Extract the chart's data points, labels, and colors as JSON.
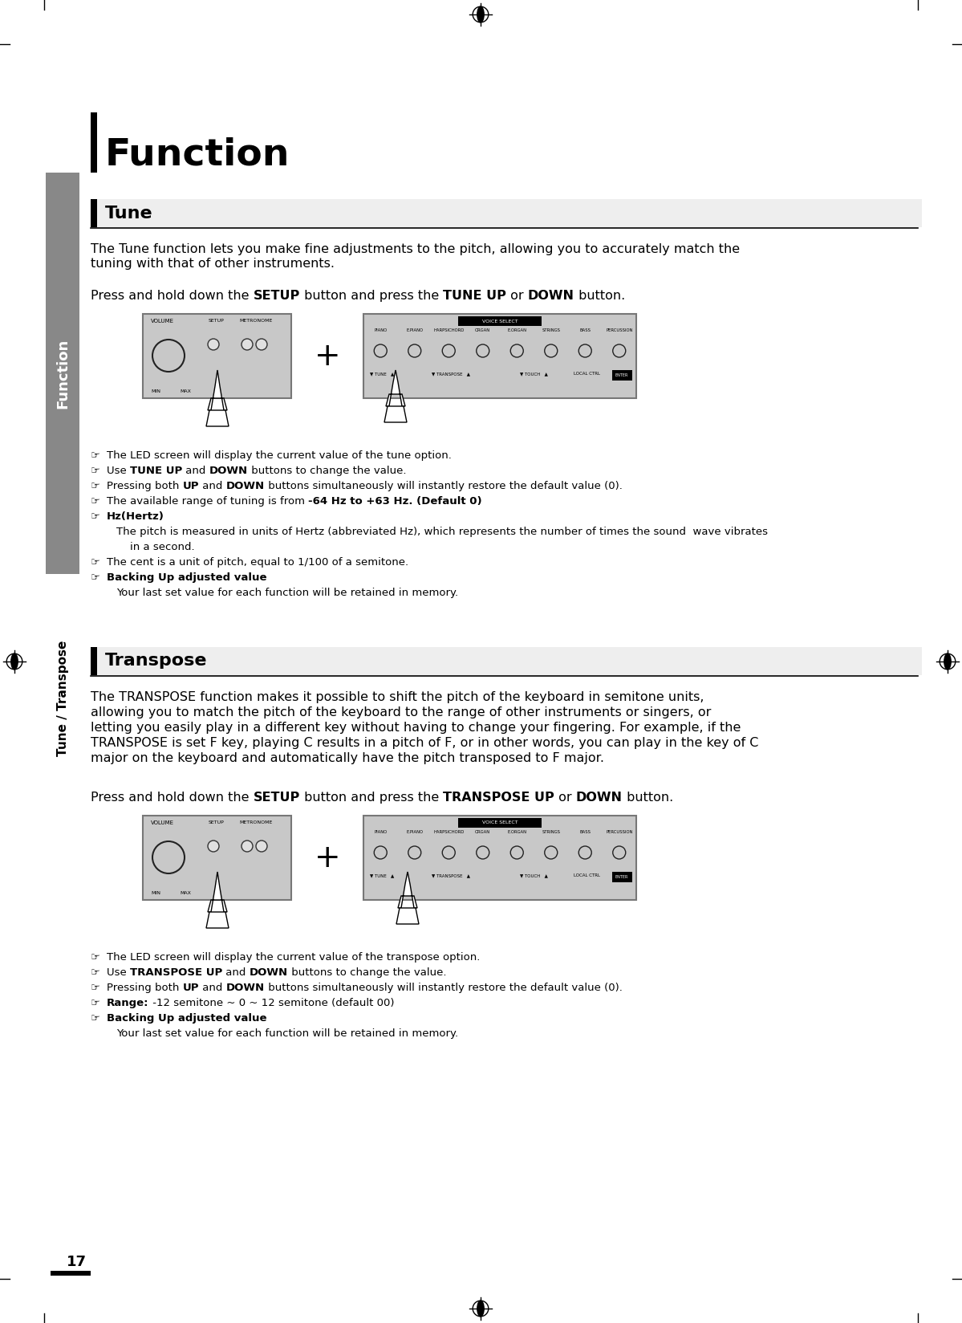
{
  "page_bg": "#ffffff",
  "page_number": "17",
  "title_main": "Function",
  "section1_title": "Tune",
  "section1_body1": "The Tune function lets you make fine adjustments to the pitch, allowing you to accurately match the",
  "section1_body2": "tuning with that of other instruments.",
  "section1_press_parts": [
    [
      "Press and hold down the ",
      false
    ],
    [
      "SETUP",
      true
    ],
    [
      " button and press the ",
      false
    ],
    [
      "TUNE UP",
      true
    ],
    [
      " or ",
      false
    ],
    [
      "DOWN",
      true
    ],
    [
      " button.",
      false
    ]
  ],
  "section1_bullets": [
    {
      "text": "The LED screen will display the current value of the tune option.",
      "bold_parts": []
    },
    {
      "text": "Use [TUNE UP] and [DOWN] buttons to change the value.",
      "bold_parts": [
        "TUNE UP",
        "DOWN"
      ]
    },
    {
      "text": "Pressing both [UP] and [DOWN] buttons simultaneously will instantly restore the default value (0).",
      "bold_parts": [
        "UP",
        "DOWN"
      ]
    },
    {
      "text": "The available range of tuning is from [-64 Hz to +63 Hz. (Default 0)]",
      "bold_parts": [
        "-64 Hz to +63 Hz. (Default 0)"
      ]
    },
    {
      "text": "[Hz(Hertz)]",
      "bold_parts": [
        "Hz(Hertz)"
      ],
      "sub": [
        "The pitch is measured in units of Hertz (abbreviated Hz), which represents the number of times the sound  wave vibrates",
        "    in a second."
      ]
    },
    {
      "text": "The cent is a unit of pitch, equal to 1/100 of a semitone.",
      "bold_parts": []
    },
    {
      "text": "[Backing Up adjusted value]",
      "bold_parts": [
        "Backing Up adjusted value"
      ],
      "sub": [
        "Your last set value for each function will be retained in memory."
      ]
    }
  ],
  "section2_title": "Transpose",
  "section2_body": [
    "The TRANSPOSE function makes it possible to shift the pitch of the keyboard in semitone units,",
    "allowing you to match the pitch of the keyboard to the range of other instruments or singers, or",
    "letting you easily play in a different key without having to change your fingering. For example, if the",
    "TRANSPOSE is set F key, playing C results in a pitch of F, or in other words, you can play in the key of C",
    "major on the keyboard and automatically have the pitch transposed to F major."
  ],
  "section2_press_parts": [
    [
      "Press and hold down the ",
      false
    ],
    [
      "SETUP",
      true
    ],
    [
      " button and press the ",
      false
    ],
    [
      "TRANSPOSE UP",
      true
    ],
    [
      " or ",
      false
    ],
    [
      "DOWN",
      true
    ],
    [
      " button.",
      false
    ]
  ],
  "section2_bullets": [
    {
      "text": "The LED screen will display the current value of the transpose option.",
      "bold_parts": []
    },
    {
      "text": "Use [TRANSPOSE UP] and [DOWN] buttons to change the value.",
      "bold_parts": [
        "TRANSPOSE UP",
        "DOWN"
      ]
    },
    {
      "text": "Pressing both [UP] and [DOWN] buttons simultaneously will instantly restore the default value (0).",
      "bold_parts": [
        "UP",
        "DOWN"
      ]
    },
    {
      "text": "[Range:] -12 semitone ~ 0 ~ 12 semitone (default 00)",
      "bold_parts": [
        "Range:"
      ]
    },
    {
      "text": "[Backing Up adjusted value]",
      "bold_parts": [
        "Backing Up adjusted value"
      ],
      "sub": [
        "Your last set value for each function will be retained in memory."
      ]
    }
  ],
  "sidebar_color": "#888888",
  "voice_labels": [
    "PIANO",
    "E.PIANO",
    "HARPSICHORD",
    "ORGAN",
    "E.ORGAN",
    "STRINGS",
    "BASS",
    "PERCUSSION"
  ]
}
